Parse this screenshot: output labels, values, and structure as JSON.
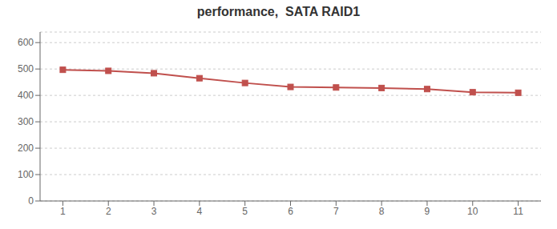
{
  "chart_data": {
    "type": "line",
    "title": "performance,  SATA RAID1",
    "x": [
      1,
      2,
      3,
      4,
      5,
      6,
      7,
      8,
      9,
      10,
      11
    ],
    "values": [
      497,
      493,
      484,
      465,
      447,
      432,
      430,
      428,
      424,
      412,
      410
    ],
    "color": "#c0504d",
    "marker": "square",
    "xlim": [
      0.5,
      11.5
    ],
    "xticks": [
      1,
      2,
      3,
      4,
      5,
      6,
      7,
      8,
      9,
      10,
      11
    ],
    "ylim": [
      0,
      640
    ],
    "yticks": [
      0,
      100,
      200,
      300,
      400,
      500,
      600
    ],
    "grid": "y"
  }
}
